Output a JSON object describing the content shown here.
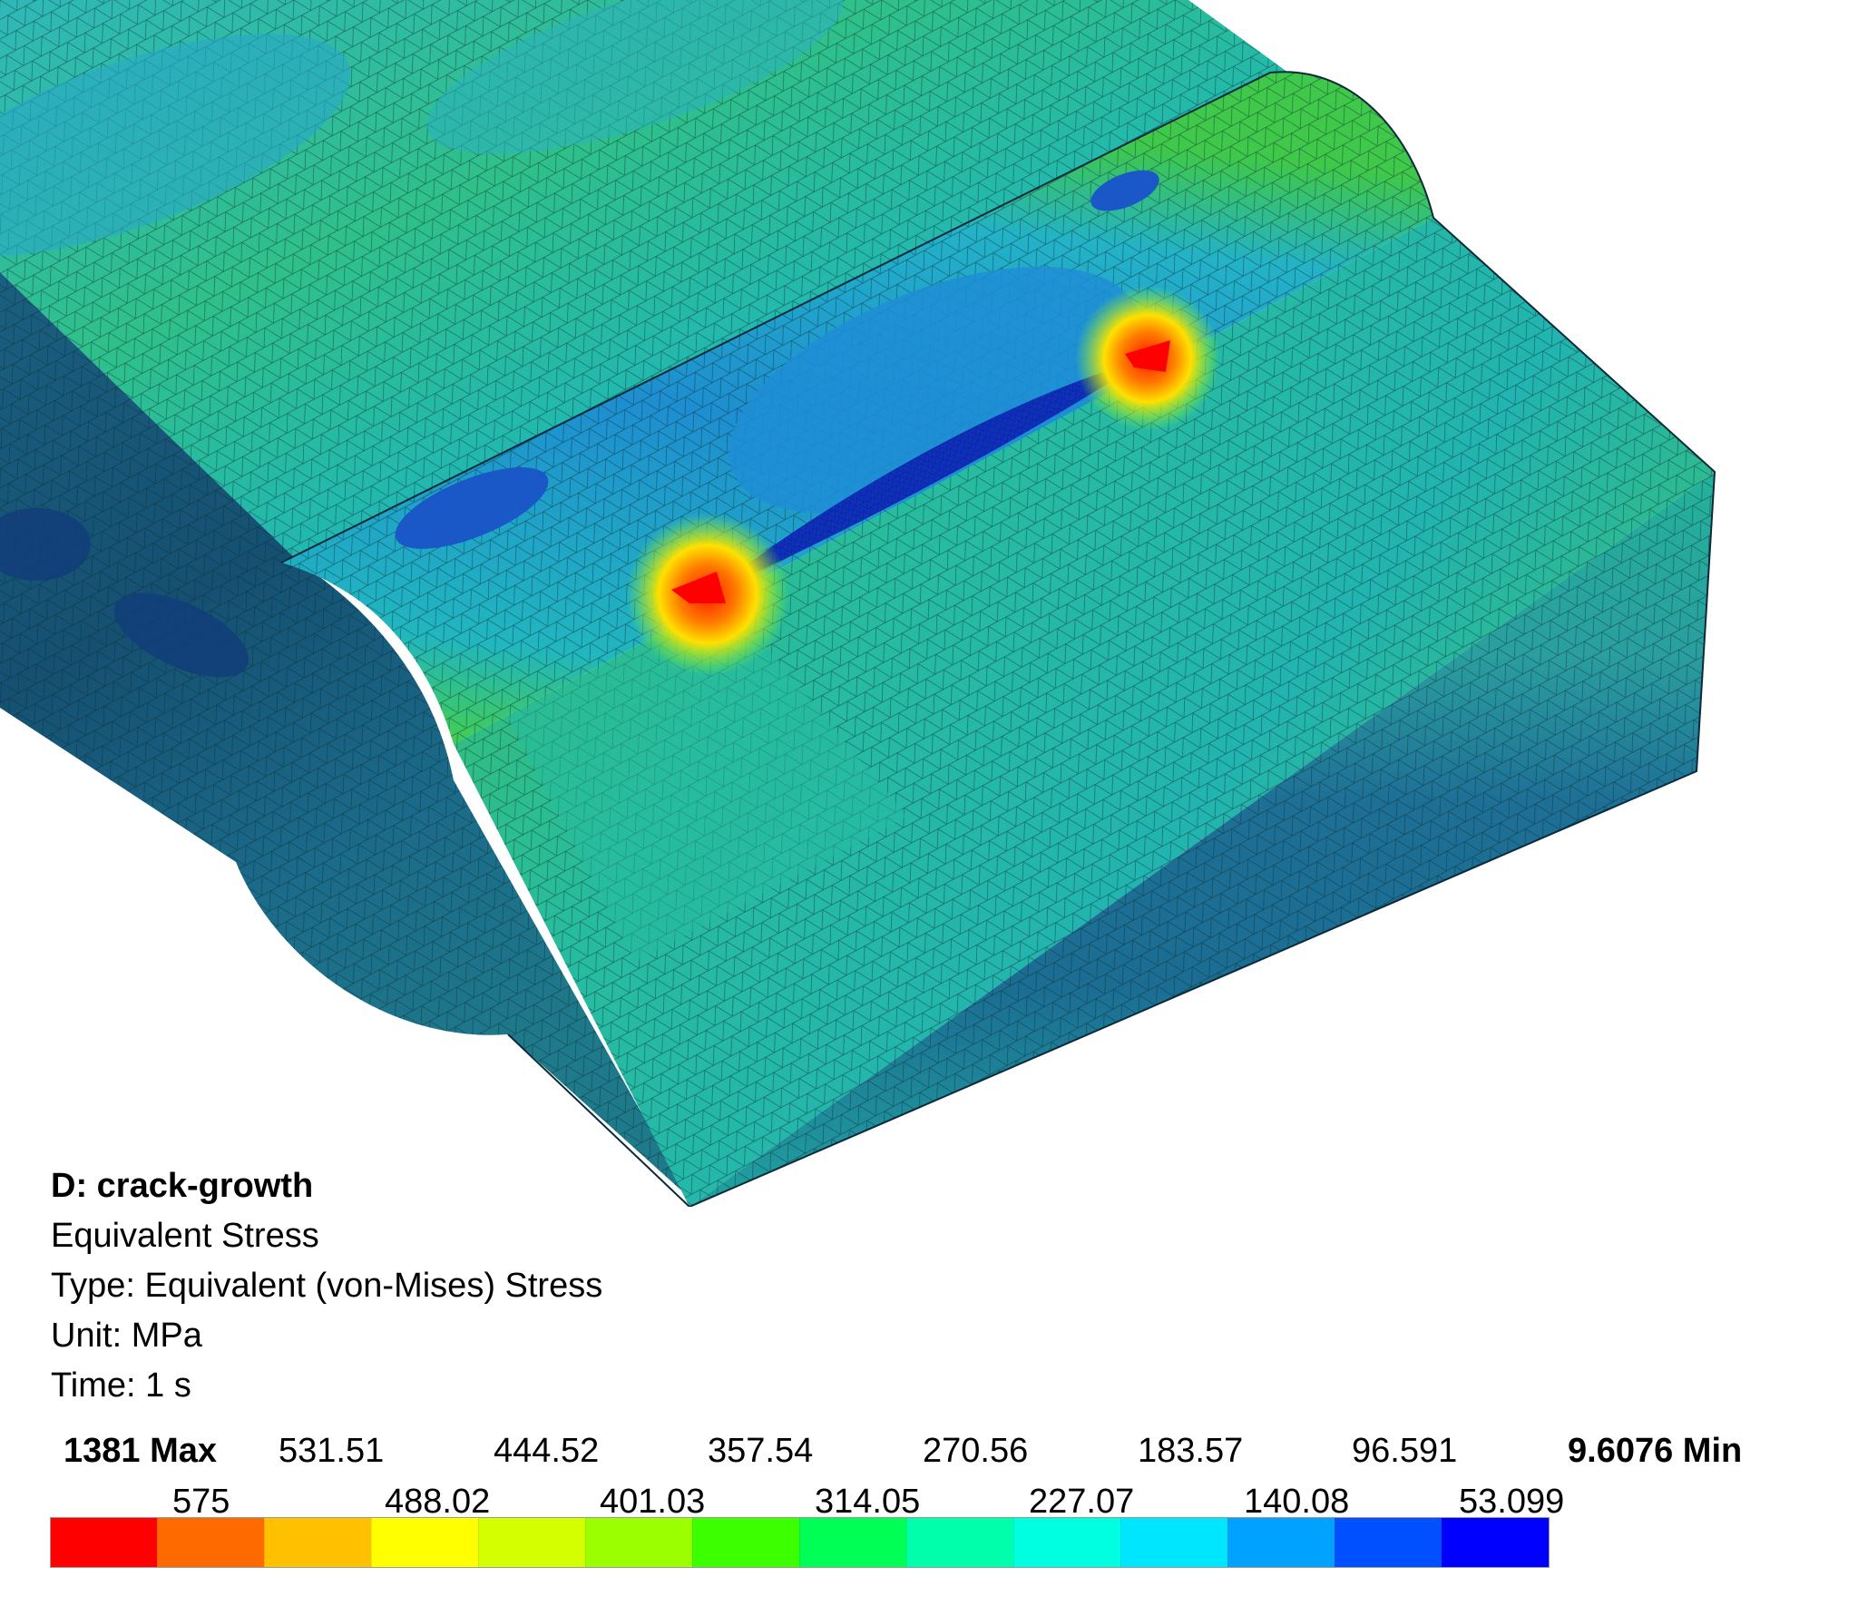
{
  "legend": {
    "analysis": "D: crack-growth",
    "result": "Equivalent Stress",
    "type": "Type: Equivalent (von-Mises) Stress",
    "unit": "Unit: MPa",
    "time": "Time: 1 s",
    "max_label": "1381 Max",
    "min_label": "9.6076 Min",
    "top_values": [
      "531.51",
      "444.52",
      "357.54",
      "270.56",
      "183.57",
      "96.591"
    ],
    "bottom_values": [
      "575",
      "488.02",
      "401.03",
      "314.05",
      "227.07",
      "140.08",
      "53.099"
    ],
    "colors": [
      "#ff0000",
      "#ff6a00",
      "#ffc000",
      "#ffff00",
      "#d4ff00",
      "#9cff00",
      "#3cff00",
      "#00ff55",
      "#00ffaa",
      "#00ffe0",
      "#00e6ff",
      "#00a2ff",
      "#0050ff",
      "#0000ff"
    ]
  },
  "model": {
    "contour_colors": {
      "top_face_base": "#22a8a8",
      "mid_green": "#3fc25c",
      "teal": "#22b7a8",
      "blue": "#1e88c8",
      "deep_blue": "#1246b8",
      "hot_red": "#ff1a00",
      "side_dark": "#14507a",
      "side_mid": "#1f6e9a"
    }
  }
}
